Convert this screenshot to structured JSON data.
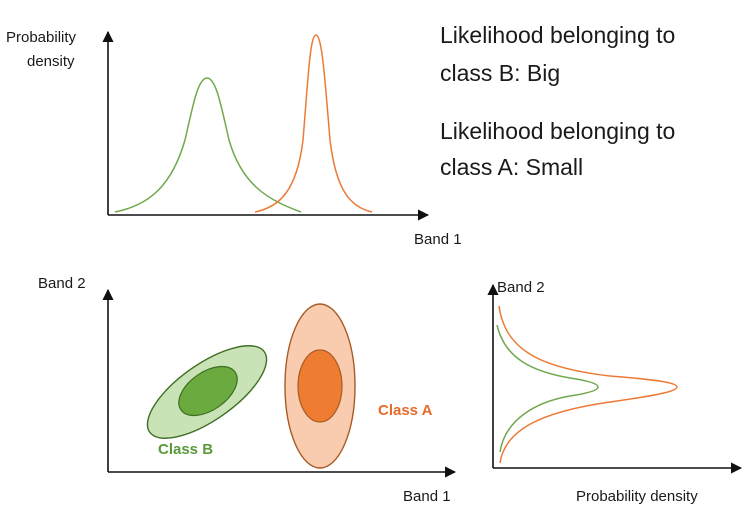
{
  "top_panel": {
    "y_axis_label_line1": "Probability",
    "y_axis_label_line2": "density",
    "x_axis_label": "Band 1",
    "text_b_line1": "Likelihood belonging to",
    "text_b_line2": "class B: Big",
    "text_a_line1": "Likelihood belonging to",
    "text_a_line2": "class A: Small"
  },
  "scatter_panel": {
    "y_axis_label": "Band 2",
    "x_axis_label": "Band 1",
    "class_b_label": "Class B",
    "class_a_label": "Class A"
  },
  "right_panel": {
    "y_axis_label": "Band 2",
    "x_axis_label": "Probability density"
  },
  "colors": {
    "class_b_line": "#70a84e",
    "class_b_fill_outer": "#c9e3b6",
    "class_b_fill_inner": "#6aaa3e",
    "class_b_text": "#5a9a3a",
    "class_a_line": "#ec7a36",
    "class_a_fill_outer": "#f9ccaf",
    "class_a_fill_inner": "#ee7d31",
    "class_a_text": "#e36c2c",
    "axis": "#111111"
  }
}
